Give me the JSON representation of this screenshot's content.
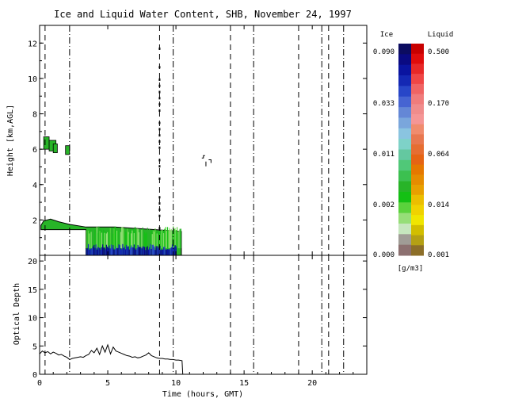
{
  "chart_data": [
    {
      "type": "heatmap",
      "title": "Ice and Liquid Water Content, SHB, November 24, 1997",
      "xlabel": "Time (hours, GMT)",
      "ylabel": "Height [km,AGL]",
      "xlim": [
        0,
        24
      ],
      "ylim": [
        0,
        13
      ],
      "xticks": [
        "0",
        "5",
        "10",
        "15",
        "20"
      ],
      "yticks": [
        "2",
        "4",
        "6",
        "8",
        "10",
        "12"
      ],
      "grid": false,
      "colorbar": {
        "ice_label": "Ice",
        "liquid_label": "Liquid",
        "units": "[g/m3]",
        "ice_ticks": [
          "0.090",
          "0.033",
          "0.011",
          "0.002",
          "0.000"
        ],
        "liquid_ticks": [
          "0.500",
          "0.170",
          "0.064",
          "0.014",
          "0.001"
        ],
        "ice_colors": [
          "#0c0c60",
          "#0a0a82",
          "#0a14a0",
          "#1428b4",
          "#2846c8",
          "#4664d2",
          "#6487d6",
          "#7aa6dc",
          "#8ac4e0",
          "#7ed2c8",
          "#64c8a0",
          "#50c878",
          "#3cc050",
          "#28b428",
          "#14c014",
          "#5ad23c",
          "#96de78",
          "#c6e6be",
          "#a09c96",
          "#8c7070"
        ],
        "liquid_colors": [
          "#c80000",
          "#e00c0c",
          "#e82828",
          "#f04646",
          "#f06464",
          "#f07c7c",
          "#f08c8c",
          "#f59696",
          "#f08c6e",
          "#e87850",
          "#e66e32",
          "#e66414",
          "#e67800",
          "#e68c00",
          "#e8a000",
          "#ebbe00",
          "#f0d200",
          "#f0e600",
          "#d2be00",
          "#b4a014",
          "#8c6e28"
        ]
      }
    },
    {
      "type": "line",
      "xlabel": "Time (hours, GMT)",
      "ylabel": "Optical Depth",
      "xlim": [
        0,
        24
      ],
      "ylim": [
        0,
        21
      ],
      "xticks": [
        "0",
        "5",
        "10",
        "15",
        "20"
      ],
      "yticks": [
        "0",
        "5",
        "10",
        "15",
        "20"
      ],
      "x": [
        0.0,
        0.2,
        0.4,
        0.6,
        0.8,
        1.0,
        1.2,
        1.4,
        1.6,
        1.8,
        2.0,
        2.2,
        2.4,
        2.6,
        2.8,
        3.0,
        3.2,
        3.4,
        3.6,
        3.8,
        4.0,
        4.2,
        4.4,
        4.6,
        4.8,
        5.0,
        5.2,
        5.4,
        5.6,
        5.8,
        6.0,
        6.2,
        6.4,
        6.6,
        6.8,
        7.0,
        7.2,
        7.4,
        7.6,
        7.8,
        8.0,
        8.2,
        8.4,
        8.6,
        8.8,
        9.0,
        9.2,
        9.4,
        9.6,
        9.8,
        10.0,
        10.2,
        10.45,
        10.5
      ],
      "y": [
        3.6,
        4.1,
        3.8,
        4.0,
        3.6,
        3.9,
        3.7,
        3.4,
        3.5,
        3.2,
        3.0,
        2.6,
        2.8,
        2.9,
        3.0,
        3.1,
        3.0,
        3.3,
        3.5,
        4.2,
        3.8,
        4.6,
        3.5,
        5.0,
        3.9,
        5.2,
        3.6,
        4.8,
        4.1,
        3.9,
        3.7,
        3.5,
        3.3,
        3.2,
        3.0,
        3.1,
        2.9,
        3.0,
        3.2,
        3.4,
        3.8,
        3.3,
        3.1,
        2.9,
        2.8,
        2.8,
        2.7,
        2.7,
        2.6,
        2.6,
        2.5,
        2.5,
        2.4,
        0.0
      ],
      "event_lines": [
        0.4,
        2.2,
        8.8,
        9.8,
        14.0,
        15.7,
        19.0,
        20.7,
        21.2,
        22.3
      ]
    }
  ]
}
